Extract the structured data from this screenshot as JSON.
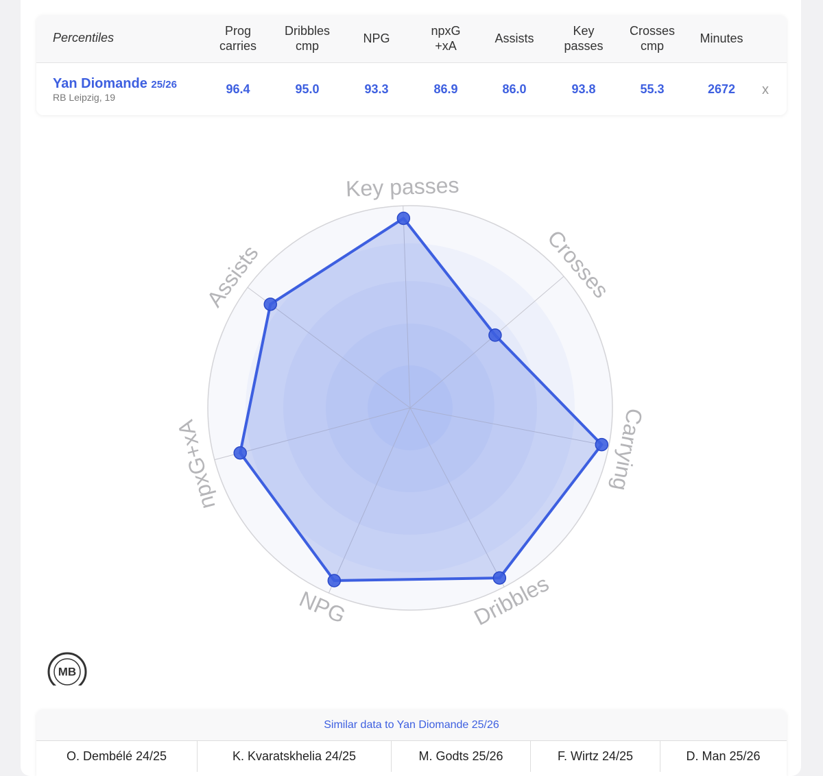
{
  "table": {
    "header": {
      "label": "Percentiles",
      "columns": [
        [
          "Prog",
          "carries"
        ],
        [
          "Dribbles",
          "cmp"
        ],
        [
          "NPG"
        ],
        [
          "npxG",
          "+xA"
        ],
        [
          "Assists"
        ],
        [
          "Key",
          "passes"
        ],
        [
          "Crosses",
          "cmp"
        ],
        [
          "Minutes"
        ]
      ]
    },
    "row": {
      "name": "Yan Diomande",
      "season": "25/26",
      "club": "RB Leipzig, 19",
      "values": [
        "96.4",
        "95.0",
        "93.3",
        "86.9",
        "86.0",
        "93.8",
        "55.3",
        "2672"
      ],
      "remove": "x"
    }
  },
  "chart_data": {
    "type": "radar",
    "categories": [
      "Key passes",
      "Crosses",
      "Carrying",
      "Dribbles",
      "NPG",
      "npxG+xA",
      "Assists"
    ],
    "values": [
      93.8,
      55.3,
      96.4,
      95.0,
      93.3,
      86.9,
      86.0
    ],
    "rlim": [
      0,
      100
    ],
    "color": "#3d5fe0"
  },
  "logo": "MB",
  "similar": {
    "title": "Similar data to Yan Diomande 25/26",
    "players": [
      "O. Dembélé 24/25",
      "K. Kvaratskhelia 24/25",
      "M. Godts 25/26",
      "F. Wirtz 24/25",
      "D. Man 25/26"
    ]
  }
}
